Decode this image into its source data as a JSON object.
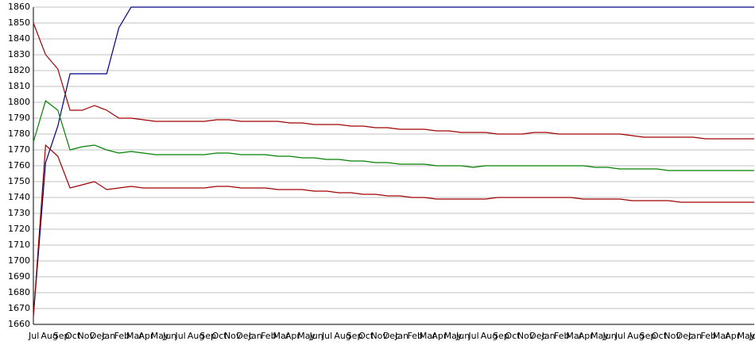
{
  "chart_data": {
    "type": "line",
    "categories": [
      "Jul",
      "Aug",
      "Sep",
      "Oct",
      "Nov",
      "Dec",
      "Jan",
      "Feb",
      "Mar",
      "Apr",
      "May",
      "Jun",
      "Jul",
      "Aug",
      "Sep",
      "Oct",
      "Nov",
      "Dec",
      "Jan",
      "Feb",
      "Mar",
      "Apr",
      "May",
      "Jun",
      "Jul",
      "Aug",
      "Sep",
      "Oct",
      "Nov",
      "Dec",
      "Jan",
      "Feb",
      "Mar",
      "Apr",
      "May",
      "Jun",
      "Jul",
      "Aug",
      "Sep",
      "Oct",
      "Nov",
      "Dec",
      "Jan",
      "Feb",
      "Mar",
      "Apr",
      "May",
      "Jun",
      "Jul",
      "Aug",
      "Sep",
      "Oct",
      "Nov",
      "Dec",
      "Jan",
      "Feb",
      "Mar",
      "Apr",
      "May",
      "Jun"
    ],
    "series": [
      {
        "color": "#000080",
        "values": [
          1665,
          1762,
          1785,
          1818,
          1818,
          1818,
          1818,
          1847,
          1860,
          1860,
          1860,
          1860,
          1860,
          1860,
          1860,
          1860,
          1860,
          1860,
          1860,
          1860,
          1860,
          1860,
          1860,
          1860,
          1860,
          1860,
          1860,
          1860,
          1860,
          1860,
          1860,
          1860,
          1860,
          1860,
          1860,
          1860,
          1860,
          1860,
          1860,
          1860,
          1860,
          1860,
          1860,
          1860,
          1860,
          1860,
          1860,
          1860,
          1860,
          1860,
          1860,
          1860,
          1860,
          1860,
          1860,
          1860,
          1860,
          1860,
          1860,
          1860
        ]
      },
      {
        "color": "#a00000",
        "values": [
          1850,
          1830,
          1821,
          1795,
          1795,
          1798,
          1795,
          1790,
          1790,
          1789,
          1788,
          1788,
          1788,
          1788,
          1788,
          1789,
          1789,
          1788,
          1788,
          1788,
          1788,
          1787,
          1787,
          1786,
          1786,
          1786,
          1785,
          1785,
          1784,
          1784,
          1783,
          1783,
          1783,
          1782,
          1782,
          1781,
          1781,
          1781,
          1780,
          1780,
          1780,
          1781,
          1781,
          1780,
          1780,
          1780,
          1780,
          1780,
          1780,
          1779,
          1778,
          1778,
          1778,
          1778,
          1778,
          1777,
          1777,
          1777,
          1777,
          1777
        ]
      },
      {
        "color": "#008000",
        "values": [
          1775,
          1801,
          1795,
          1770,
          1772,
          1773,
          1770,
          1768,
          1769,
          1768,
          1767,
          1767,
          1767,
          1767,
          1767,
          1768,
          1768,
          1767,
          1767,
          1767,
          1766,
          1766,
          1765,
          1765,
          1764,
          1764,
          1763,
          1763,
          1762,
          1762,
          1761,
          1761,
          1761,
          1760,
          1760,
          1760,
          1759,
          1760,
          1760,
          1760,
          1760,
          1760,
          1760,
          1760,
          1760,
          1760,
          1759,
          1759,
          1758,
          1758,
          1758,
          1758,
          1757,
          1757,
          1757,
          1757,
          1757,
          1757,
          1757,
          1757
        ]
      },
      {
        "color": "#a00000",
        "values": [
          1665,
          1773,
          1766,
          1746,
          1748,
          1750,
          1745,
          1746,
          1747,
          1746,
          1746,
          1746,
          1746,
          1746,
          1746,
          1747,
          1747,
          1746,
          1746,
          1746,
          1745,
          1745,
          1745,
          1744,
          1744,
          1743,
          1743,
          1742,
          1742,
          1741,
          1741,
          1740,
          1740,
          1739,
          1739,
          1739,
          1739,
          1739,
          1740,
          1740,
          1740,
          1740,
          1740,
          1740,
          1740,
          1739,
          1739,
          1739,
          1739,
          1738,
          1738,
          1738,
          1738,
          1737,
          1737,
          1737,
          1737,
          1737,
          1737,
          1737
        ]
      }
    ],
    "ylim": [
      1660,
      1860
    ],
    "yticks": [
      1660,
      1670,
      1680,
      1690,
      1700,
      1710,
      1720,
      1730,
      1740,
      1750,
      1760,
      1770,
      1780,
      1790,
      1800,
      1810,
      1820,
      1830,
      1840,
      1850,
      1860
    ],
    "grid": true
  }
}
